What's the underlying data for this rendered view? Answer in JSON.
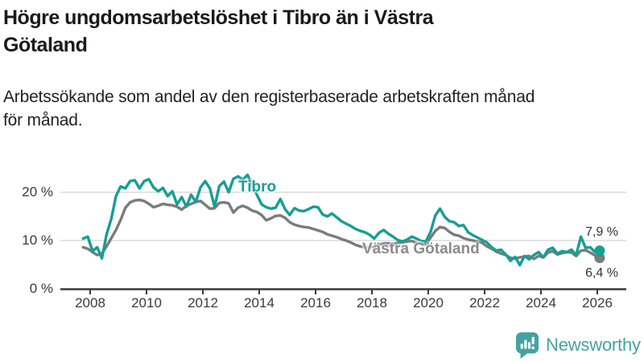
{
  "title_lines": [
    "Högre ungdomsarbetslöshet i Tibro än i Västra",
    "Götaland"
  ],
  "subtitle_lines": [
    "Arbetssökande som andel av den registerbaserade arbetskraften månad",
    "för månad."
  ],
  "branding": {
    "name": "Newsworthy",
    "icon": "newsworthy-speech-bubble-chart-icon",
    "color": "#43a3a0"
  },
  "colors": {
    "tibro": "#179e96",
    "vastra_gotaland": "#7b7b7b",
    "axis": "#3b3b3b",
    "gridline": "#dcdcdc",
    "title": "#1a1a1a"
  },
  "chart_data": {
    "type": "line",
    "title": "Högre ungdomsarbetslöshet i Tibro än i Västra Götaland",
    "subtitle": "Arbetssökande som andel av den registerbaserade arbetskraften månad för månad.",
    "ylabel": "",
    "xlabel": "",
    "ylim": [
      0,
      25
    ],
    "grid": "horizontal",
    "legend_position": "inline-labels",
    "y_ticks": [
      {
        "value": 0,
        "label": "0 %"
      },
      {
        "value": 10,
        "label": "10 %"
      },
      {
        "value": 20,
        "label": "20 %"
      }
    ],
    "x_ticks": [
      {
        "year": 2008,
        "label": "2008"
      },
      {
        "year": 2010,
        "label": "2010"
      },
      {
        "year": 2012,
        "label": "2012"
      },
      {
        "year": 2014,
        "label": "2014"
      },
      {
        "year": 2016,
        "label": "2016"
      },
      {
        "year": 2018,
        "label": "2018"
      },
      {
        "year": 2020,
        "label": "2020"
      },
      {
        "year": 2022,
        "label": "2022"
      },
      {
        "year": 2024,
        "label": "2024"
      },
      {
        "year": 2026,
        "label": "2026"
      }
    ],
    "series": [
      {
        "name": "Tibro",
        "color": "#179e96",
        "end_label": "7,9 %",
        "end_value": 7.9,
        "start_year": 2007.75,
        "step_years": 0.1666667,
        "values": [
          10.4,
          10.8,
          7.8,
          8.6,
          6.3,
          11.3,
          14.5,
          19.2,
          21.2,
          20.8,
          22.3,
          22.5,
          20.8,
          22.3,
          22.7,
          21.0,
          20.2,
          20.9,
          19.2,
          20.2,
          17.5,
          19.0,
          17.0,
          19.5,
          18.0,
          21.0,
          22.3,
          20.8,
          17.0,
          21.3,
          22.2,
          20.0,
          22.8,
          23.3,
          22.6,
          23.6,
          21.5,
          19.5,
          17.5,
          16.9,
          16.6,
          16.8,
          18.6,
          16.5,
          15.3,
          16.7,
          16.2,
          16.1,
          16.5,
          17.0,
          16.9,
          15.4,
          15.0,
          15.6,
          14.8,
          14.0,
          13.5,
          13.0,
          12.4,
          12.0,
          11.7,
          11.2,
          10.4,
          11.6,
          12.2,
          11.4,
          10.8,
          10.1,
          9.8,
          10.2,
          10.8,
          10.4,
          9.9,
          9.8,
          11.8,
          15.2,
          16.6,
          14.9,
          14.0,
          13.8,
          13.0,
          13.2,
          11.7,
          11.1,
          10.6,
          10.1,
          9.6,
          8.6,
          7.9,
          8.1,
          7.1,
          5.8,
          6.6,
          4.9,
          6.8,
          6.1,
          7.0,
          7.6,
          6.5,
          8.1,
          8.5,
          7.3,
          7.8,
          7.6,
          8.1,
          7.0,
          10.8,
          8.5,
          8.6,
          7.6,
          7.9
        ]
      },
      {
        "name": "Västra Götaland",
        "color": "#7b7b7b",
        "end_label": "6,4 %",
        "end_value": 6.4,
        "start_year": 2007.75,
        "step_years": 0.1666667,
        "values": [
          8.6,
          8.3,
          7.6,
          7.0,
          7.3,
          8.8,
          10.5,
          12.2,
          14.3,
          16.8,
          17.9,
          18.3,
          18.4,
          18.2,
          17.6,
          16.9,
          17.2,
          17.6,
          17.4,
          17.3,
          17.0,
          16.4,
          17.2,
          17.6,
          18.0,
          18.2,
          17.4,
          16.6,
          16.7,
          17.8,
          17.9,
          17.7,
          15.8,
          16.8,
          17.2,
          16.8,
          16.2,
          15.9,
          15.3,
          14.2,
          14.6,
          15.1,
          15.2,
          14.7,
          13.8,
          13.3,
          13.0,
          12.8,
          12.7,
          12.4,
          12.1,
          11.8,
          11.3,
          11.0,
          10.7,
          10.3,
          10.0,
          9.6,
          9.1,
          8.8,
          8.6,
          8.6,
          8.7,
          9.1,
          9.4,
          9.4,
          9.3,
          9.5,
          9.6,
          9.8,
          9.9,
          9.5,
          9.3,
          9.2,
          10.6,
          12.0,
          12.8,
          12.6,
          11.8,
          11.2,
          11.0,
          10.5,
          10.2,
          10.0,
          9.8,
          9.5,
          8.8,
          8.3,
          7.7,
          7.3,
          7.0,
          6.4,
          6.3,
          6.5,
          6.7,
          6.8,
          6.2,
          6.8,
          6.5,
          7.5,
          7.8,
          7.1,
          7.4,
          7.6,
          7.5,
          6.8,
          7.9,
          8.0,
          7.5,
          6.9,
          6.4
        ]
      }
    ]
  }
}
